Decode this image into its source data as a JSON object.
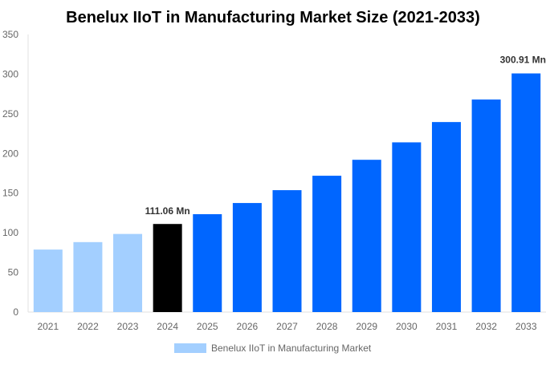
{
  "chart_data": {
    "type": "bar",
    "title": "Benelux IIoT in Manufacturing Market Size (2021-2033)",
    "xlabel": "",
    "ylabel": "",
    "ylim": [
      0,
      350
    ],
    "yticks": [
      0,
      50,
      100,
      150,
      200,
      250,
      300,
      350
    ],
    "grid": false,
    "legend_position": "bottom",
    "categories": [
      "2021",
      "2022",
      "2023",
      "2024",
      "2025",
      "2026",
      "2027",
      "2028",
      "2029",
      "2030",
      "2031",
      "2032",
      "2033"
    ],
    "series": [
      {
        "name": "Benelux IIoT in Manufacturing Market",
        "values": [
          78.8,
          88.2,
          98.5,
          111.06,
          123.4,
          137.5,
          153.7,
          171.9,
          192.0,
          214.0,
          239.6,
          268.0,
          300.91
        ]
      }
    ],
    "bar_colors": [
      "#a3cfff",
      "#a3cfff",
      "#a3cfff",
      "#000000",
      "#0066ff",
      "#0066ff",
      "#0066ff",
      "#0066ff",
      "#0066ff",
      "#0066ff",
      "#0066ff",
      "#0066ff",
      "#0066ff"
    ],
    "legend_color": "#a3cfff",
    "annotations": [
      {
        "category": "2024",
        "text": "111.06 Mn"
      },
      {
        "category": "2033",
        "text": "300.91 Mn"
      }
    ]
  }
}
